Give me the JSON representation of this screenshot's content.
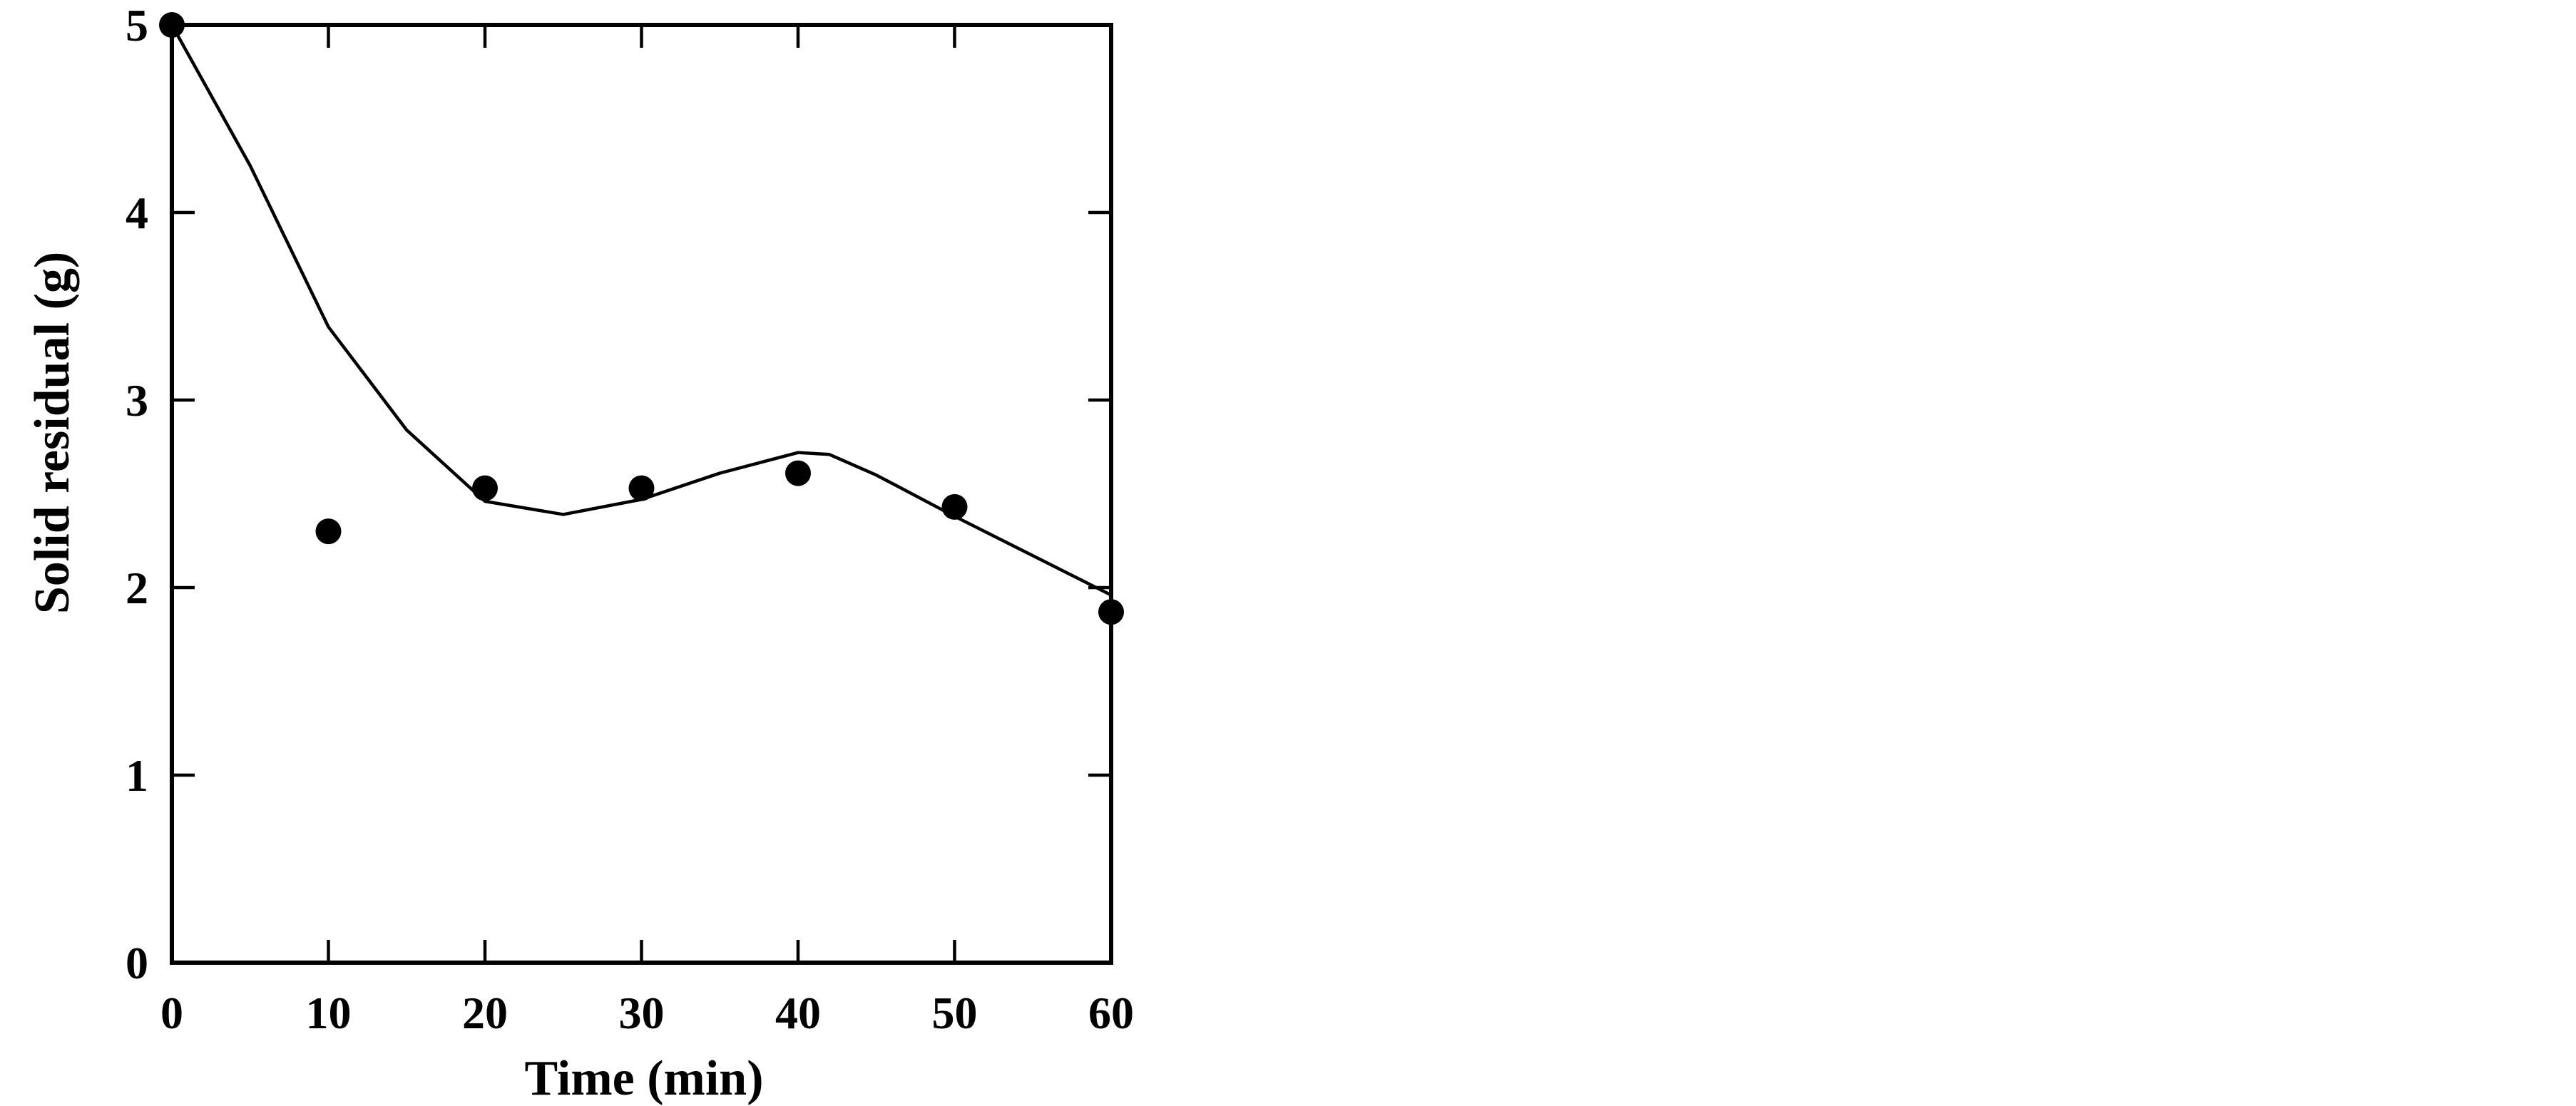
{
  "chart_data": {
    "type": "scatter",
    "x_label": "Time (min)",
    "y_label": "Solid residual (g)",
    "x": [
      0,
      10,
      20,
      30,
      40,
      50,
      60
    ],
    "series": [
      {
        "color": "#000000",
        "values": [
          5.0,
          2.3,
          2.53,
          2.53,
          2.61,
          2.43,
          1.87
        ]
      }
    ],
    "curve": {
      "color": "#000000",
      "x": [
        0,
        5,
        10,
        15,
        20,
        25,
        30,
        35,
        40,
        42,
        45,
        50,
        55,
        60
      ],
      "values": [
        5.0,
        4.25,
        3.39,
        2.84,
        2.46,
        2.39,
        2.47,
        2.61,
        2.72,
        2.71,
        2.6,
        2.38,
        2.17,
        1.96
      ]
    },
    "xlim": [
      0,
      60
    ],
    "xticks": [
      0,
      10,
      20,
      30,
      40,
      50,
      60
    ],
    "ylim": [
      0,
      5
    ],
    "yticks": [
      0,
      1,
      2,
      3,
      4,
      5
    ]
  }
}
